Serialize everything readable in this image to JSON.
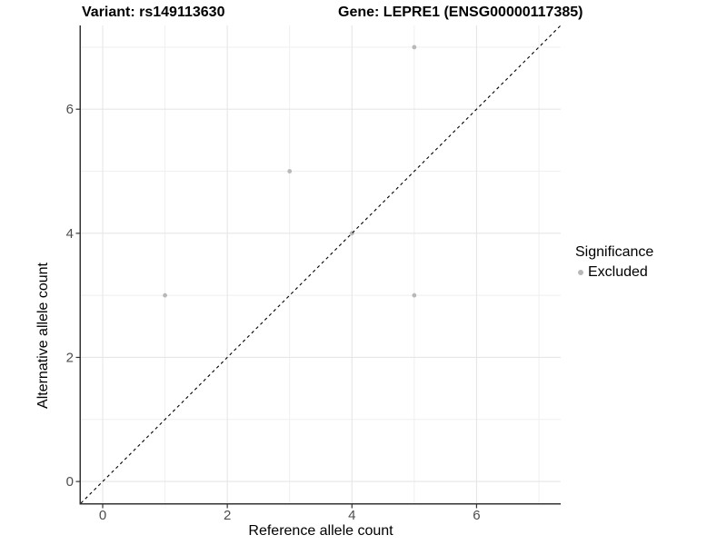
{
  "chart_data": {
    "type": "scatter",
    "title_left": "Variant: rs149113630",
    "title_right": "Gene: LEPRE1 (ENSG00000117385)",
    "xlabel": "Reference allele count",
    "ylabel": "Alternative allele count",
    "xlim": [
      -0.35,
      7.35
    ],
    "ylim": [
      -0.35,
      7.35
    ],
    "x_ticks": [
      0,
      2,
      4,
      6
    ],
    "y_ticks": [
      0,
      2,
      4,
      6
    ],
    "x_minor_ticks": [
      1,
      3,
      5,
      7
    ],
    "y_minor_ticks": [
      1,
      3,
      5,
      7
    ],
    "grid": true,
    "identity_line": {
      "slope": 1,
      "intercept": 0,
      "style": "dashed",
      "color": "#000000"
    },
    "series": [
      {
        "name": "Excluded",
        "color": "#b8b8b8",
        "points": [
          [
            1,
            3
          ],
          [
            3,
            5
          ],
          [
            4,
            4
          ],
          [
            5,
            3
          ],
          [
            5,
            7
          ]
        ]
      }
    ],
    "legend": {
      "title": "Significance",
      "position": "right",
      "items": [
        {
          "label": "Excluded",
          "color": "#b8b8b8"
        }
      ]
    }
  },
  "colors": {
    "background": "#ffffff",
    "axis_line": "#333333",
    "tick_mark": "#333333",
    "tick_label": "#4d4d4d",
    "grid_major": "#e6e6e6",
    "grid_minor": "#eeeeee",
    "point": "#b8b8b8",
    "dashed_line": "#000000"
  }
}
